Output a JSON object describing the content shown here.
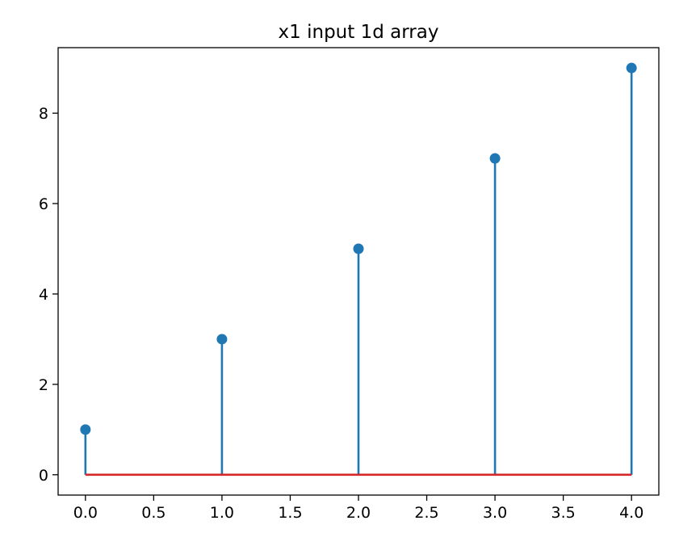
{
  "chart_data": {
    "type": "stem",
    "title": "x1 input 1d array",
    "xlabel": "",
    "ylabel": "",
    "x": [
      0,
      1,
      2,
      3,
      4
    ],
    "y": [
      1,
      3,
      5,
      7,
      9
    ],
    "baseline": 0,
    "xlim": [
      -0.2,
      4.2
    ],
    "ylim": [
      -0.45,
      9.45
    ],
    "xticks": [
      0.0,
      0.5,
      1.0,
      1.5,
      2.0,
      2.5,
      3.0,
      3.5,
      4.0
    ],
    "xtick_labels": [
      "0.0",
      "0.5",
      "1.0",
      "1.5",
      "2.0",
      "2.5",
      "3.0",
      "3.5",
      "4.0"
    ],
    "yticks": [
      0,
      2,
      4,
      6,
      8
    ],
    "ytick_labels": [
      "0",
      "2",
      "4",
      "6",
      "8"
    ],
    "grid": false,
    "colors": {
      "stem": "#1f77b4",
      "marker": "#1f77b4",
      "baseline": "#d62728",
      "axes": "#000000",
      "background": "#ffffff"
    }
  }
}
